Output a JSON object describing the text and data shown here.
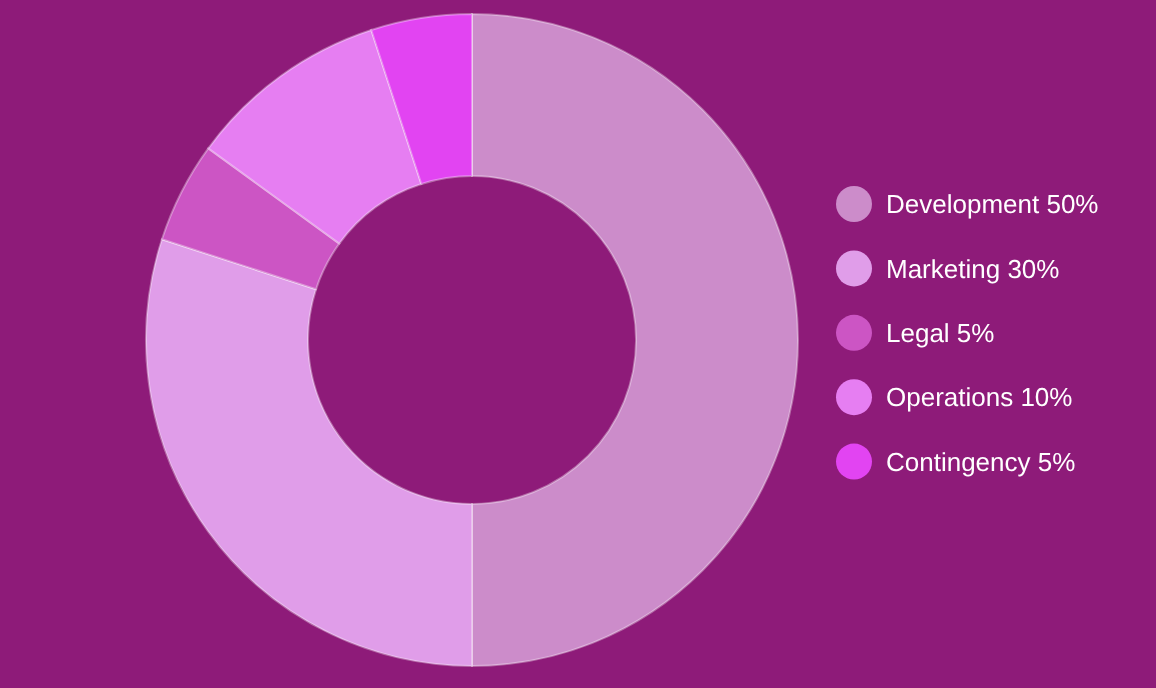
{
  "chart_data": {
    "type": "donut",
    "categories": [
      "Development",
      "Marketing",
      "Legal",
      "Operations",
      "Contingency"
    ],
    "values": [
      50,
      30,
      5,
      10,
      5
    ],
    "value_labels": [
      "50%",
      "30%",
      "5%",
      "10%",
      "5%"
    ],
    "colors": [
      "#cc8cca",
      "#e09de9",
      "#cc55c4",
      "#e67ef2",
      "#e244f2"
    ],
    "legend": "right"
  }
}
